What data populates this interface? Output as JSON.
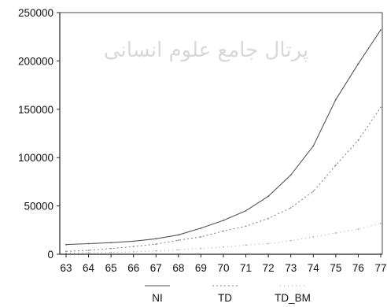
{
  "chart_data": {
    "type": "line",
    "title": "",
    "xlabel": "",
    "ylabel": "",
    "x": [
      "63",
      "64",
      "65",
      "66",
      "67",
      "68",
      "69",
      "70",
      "71",
      "72",
      "73",
      "74",
      "75",
      "76",
      "77"
    ],
    "ylim": [
      0,
      250000
    ],
    "yticks": [
      "0",
      "50000",
      "100000",
      "150000",
      "200000",
      "250000"
    ],
    "grid": false,
    "legend_position": "bottom",
    "series": [
      {
        "name": "NI",
        "color": "#555555",
        "values": [
          10000,
          11000,
          12000,
          13500,
          16000,
          20000,
          27000,
          35000,
          45000,
          60000,
          82000,
          112000,
          160000,
          197000,
          232000
        ]
      },
      {
        "name": "TD",
        "color": "#888888",
        "values": [
          3000,
          4000,
          6000,
          8000,
          10500,
          14500,
          18000,
          24000,
          29000,
          37000,
          48000,
          65000,
          92000,
          118000,
          152000
        ]
      },
      {
        "name": "TD_BM",
        "color": "#aaaaaa",
        "values": [
          1000,
          1500,
          2000,
          2500,
          3500,
          4500,
          6000,
          7500,
          9500,
          11000,
          14000,
          18000,
          22000,
          26000,
          32000
        ]
      }
    ]
  },
  "watermark": "پرتال جامع علوم انسانی"
}
